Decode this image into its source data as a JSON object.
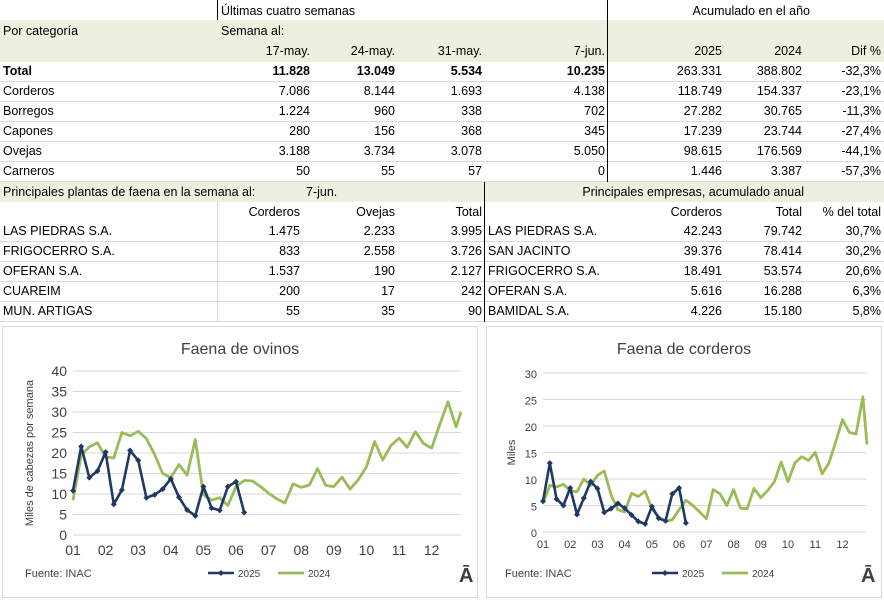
{
  "header": {
    "last4": "Últimas cuatro semanas",
    "accum": "Acumulado en el año",
    "category": "Por categoría",
    "week_of": "Semana al:",
    "weeks": [
      "17-may.",
      "24-may.",
      "31-may.",
      "7-jun."
    ],
    "years": [
      "2025",
      "2024"
    ],
    "dif": "Dif %"
  },
  "categories": [
    {
      "name": "Total",
      "w": [
        "11.828",
        "13.049",
        "5.534",
        "10.235"
      ],
      "y2025": "263.331",
      "y2024": "388.802",
      "dif": "-32,3%"
    },
    {
      "name": "Corderos",
      "w": [
        "7.086",
        "8.144",
        "1.693",
        "4.138"
      ],
      "y2025": "118.749",
      "y2024": "154.337",
      "dif": "-23,1%"
    },
    {
      "name": "Borregos",
      "w": [
        "1.224",
        "960",
        "338",
        "702"
      ],
      "y2025": "27.282",
      "y2024": "30.765",
      "dif": "-11,3%"
    },
    {
      "name": "Capones",
      "w": [
        "280",
        "156",
        "368",
        "345"
      ],
      "y2025": "17.239",
      "y2024": "23.744",
      "dif": "-27,4%"
    },
    {
      "name": "Ovejas",
      "w": [
        "3.188",
        "3.734",
        "3.078",
        "5.050"
      ],
      "y2025": "98.615",
      "y2024": "176.569",
      "dif": "-44,1%"
    },
    {
      "name": "Carneros",
      "w": [
        "50",
        "55",
        "57",
        "0"
      ],
      "y2025": "1.446",
      "y2024": "3.387",
      "dif": "-57,3%"
    }
  ],
  "plants": {
    "title": "Principales plantas de faena en la semana al:",
    "week": "7-jun.",
    "cols": [
      "Corderos",
      "Ovejas",
      "Total"
    ],
    "rows": [
      {
        "name": "LAS PIEDRAS S.A.",
        "v": [
          "1.475",
          "2.233",
          "3.995"
        ]
      },
      {
        "name": "FRIGOCERRO S.A.",
        "v": [
          "833",
          "2.558",
          "3.726"
        ]
      },
      {
        "name": "OFERAN S.A.",
        "v": [
          "1.537",
          "190",
          "2.127"
        ]
      },
      {
        "name": "CUAREIM",
        "v": [
          "200",
          "17",
          "242"
        ]
      },
      {
        "name": "MUN. ARTIGAS",
        "v": [
          "55",
          "35",
          "90"
        ]
      }
    ]
  },
  "companies": {
    "title": "Principales empresas, acumulado anual",
    "cols": [
      "Corderos",
      "Total",
      "% del total"
    ],
    "rows": [
      {
        "name": "LAS PIEDRAS S.A.",
        "v": [
          "42.243",
          "79.742",
          "30,7%"
        ]
      },
      {
        "name": "SAN JACINTO",
        "v": [
          "39.376",
          "78.414",
          "30,2%"
        ]
      },
      {
        "name": "FRIGOCERRO S.A.",
        "v": [
          "18.491",
          "53.574",
          "20,6%"
        ]
      },
      {
        "name": "OFERAN S.A.",
        "v": [
          "5.616",
          "16.288",
          "6,3%"
        ]
      },
      {
        "name": "BAMIDAL S.A.",
        "v": [
          "4.226",
          "15.180",
          "5,8%"
        ]
      }
    ]
  },
  "colors": {
    "c2025": "#1f3864",
    "c2024": "#9bbb59",
    "green_bg": "#ebf1de"
  },
  "chart_data": [
    {
      "type": "line",
      "title": "Faena de ovinos",
      "ylabel": "Miles de cabezas por semana",
      "ylim": [
        0,
        40
      ],
      "yticks": [
        0,
        5,
        10,
        15,
        20,
        25,
        30,
        35,
        40
      ],
      "xticks": [
        "01",
        "02",
        "03",
        "04",
        "05",
        "06",
        "07",
        "08",
        "09",
        "10",
        "11",
        "12"
      ],
      "xlim": [
        1,
        12.9
      ],
      "source": "Fuente:  INAC",
      "logo": "Ā",
      "series": [
        {
          "name": "2025",
          "x": [
            1.0,
            1.25,
            1.5,
            1.75,
            2.0,
            2.25,
            2.5,
            2.75,
            3.0,
            3.25,
            3.5,
            3.75,
            4.0,
            4.25,
            4.5,
            4.75,
            5.0,
            5.25,
            5.5,
            5.75,
            6.0,
            6.25
          ],
          "y": [
            10.8,
            21.6,
            14.0,
            15.6,
            20.2,
            7.5,
            11.0,
            20.6,
            18.2,
            9.1,
            9.8,
            11.2,
            13.7,
            9.2,
            6.1,
            4.7,
            11.8,
            6.6,
            6.0,
            11.8,
            13.0,
            5.5
          ]
        },
        {
          "name": "2024",
          "x": [
            1.0,
            1.25,
            1.5,
            1.75,
            2.0,
            2.25,
            2.5,
            2.75,
            3.0,
            3.25,
            3.5,
            3.75,
            4.0,
            4.25,
            4.5,
            4.75,
            5.0,
            5.25,
            5.5,
            5.75,
            6.0,
            6.25,
            6.5,
            6.75,
            7.0,
            7.25,
            7.5,
            7.75,
            8.0,
            8.25,
            8.5,
            8.75,
            9.0,
            9.25,
            9.5,
            9.75,
            10.0,
            10.25,
            10.5,
            10.75,
            11.0,
            11.25,
            11.5,
            11.75,
            12.0,
            12.25,
            12.5,
            12.75,
            12.9
          ],
          "y": [
            8.5,
            19.5,
            21.5,
            22.5,
            19.0,
            18.8,
            25.0,
            24.2,
            25.3,
            23.5,
            19.7,
            15.0,
            14.0,
            17.2,
            14.6,
            23.3,
            9.8,
            8.5,
            9.1,
            7.2,
            11.8,
            13.3,
            13.2,
            11.8,
            10.2,
            8.8,
            7.8,
            12.5,
            11.6,
            12.2,
            16.2,
            12.1,
            11.8,
            14.1,
            11.2,
            13.5,
            16.6,
            22.8,
            18.3,
            21.8,
            23.6,
            21.4,
            25.2,
            22.3,
            21.2,
            27.0,
            32.5,
            26.4,
            30.0
          ]
        }
      ]
    },
    {
      "type": "line",
      "title": "Faena de corderos",
      "ylabel": "Miles",
      "ylim": [
        0,
        30
      ],
      "yticks": [
        0,
        5,
        10,
        15,
        20,
        25,
        30
      ],
      "xticks": [
        "01",
        "02",
        "03",
        "04",
        "05",
        "06",
        "07",
        "08",
        "09",
        "10",
        "11",
        "12"
      ],
      "xlim": [
        1,
        12.9
      ],
      "source": "Fuente:  INAC",
      "logo": "Ā",
      "series": [
        {
          "name": "2025",
          "x": [
            1.0,
            1.25,
            1.5,
            1.75,
            2.0,
            2.25,
            2.5,
            2.75,
            3.0,
            3.25,
            3.5,
            3.75,
            4.0,
            4.25,
            4.5,
            4.75,
            5.0,
            5.25,
            5.5,
            5.75,
            6.0,
            6.25
          ],
          "y": [
            5.8,
            13.0,
            6.2,
            5.0,
            8.3,
            3.3,
            6.4,
            9.5,
            8.2,
            3.7,
            4.4,
            5.4,
            4.5,
            3.2,
            2.0,
            1.5,
            4.8,
            2.6,
            2.1,
            7.2,
            8.3,
            1.7
          ]
        },
        {
          "name": "2024",
          "x": [
            1.0,
            1.25,
            1.5,
            1.75,
            2.0,
            2.25,
            2.5,
            2.75,
            3.0,
            3.25,
            3.5,
            3.75,
            4.0,
            4.25,
            4.5,
            4.75,
            5.0,
            5.25,
            5.5,
            5.75,
            6.0,
            6.25,
            6.5,
            6.75,
            7.0,
            7.25,
            7.5,
            7.75,
            8.0,
            8.25,
            8.5,
            8.75,
            9.0,
            9.25,
            9.5,
            9.75,
            10.0,
            10.25,
            10.5,
            10.75,
            11.0,
            11.25,
            11.5,
            11.75,
            12.0,
            12.25,
            12.5,
            12.75,
            12.9
          ],
          "y": [
            5.4,
            8.8,
            8.5,
            9.0,
            7.8,
            7.6,
            10.0,
            8.8,
            10.7,
            11.5,
            7.0,
            4.2,
            3.8,
            7.3,
            6.7,
            7.7,
            4.4,
            2.8,
            2.0,
            2.3,
            4.2,
            6.0,
            5.0,
            3.8,
            2.5,
            8.0,
            7.2,
            5.0,
            8.0,
            4.5,
            4.4,
            8.2,
            6.5,
            7.8,
            9.5,
            13.2,
            9.5,
            13.0,
            14.2,
            13.5,
            15.0,
            11.0,
            13.0,
            17.0,
            21.2,
            18.8,
            18.5,
            25.5,
            16.5
          ]
        }
      ]
    }
  ]
}
